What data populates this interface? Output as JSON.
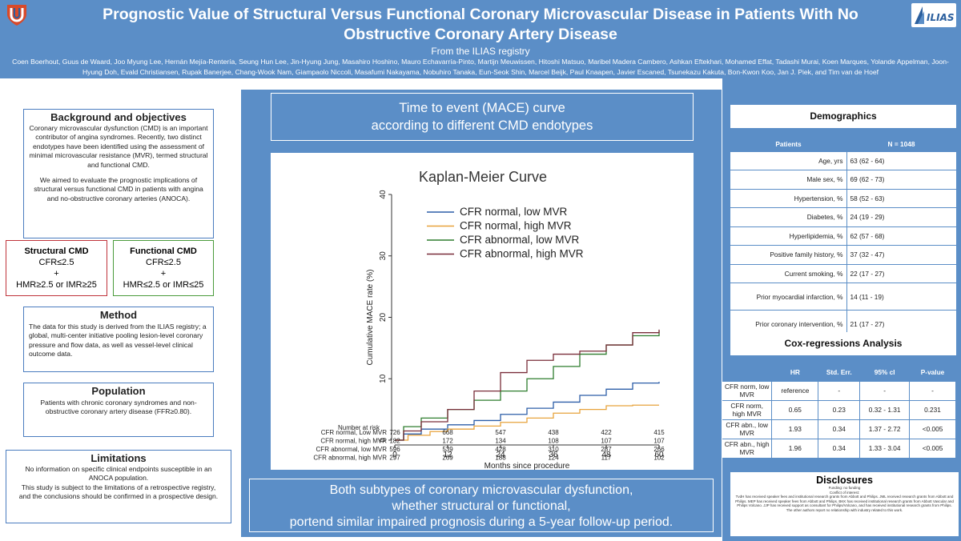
{
  "header": {
    "title": "Prognostic Value of Structural Versus Functional Coronary Microvascular Disease in Patients With No Obstructive Coronary Artery Disease",
    "subtitle": "From the ILIAS registry",
    "authors": "Coen Boerhout, Guus de Waard, Joo Myung Lee, Hernán Mejía-Rentería, Seung Hun Lee, Jin-Hyung Jung, Masahiro Hoshino, Mauro Echavarría-Pinto, Martijn Meuwissen, Hitoshi Matsuo, Maribel Madera Cambero, Ashkan Eftekhari, Mohamed Effat, Tadashi Murai, Koen Marques, Yolande Appelman, Joon-Hyung Doh, Evald Christiansen, Rupak Banerjee, Chang-Wook Nam, Giampaolo Niccoli, Masafumi Nakayama, Nobuhiro Tanaka, Eun-Seok Shin, Marcel Beijk, Paul Knaapen, Javier Escaned, Tsunekazu Kakuta, Bon-Kwon Koo, Jan J. Piek, and Tim van de Hoef",
    "logo_right_text": "ILIAS"
  },
  "left": {
    "background": {
      "title": "Background and objectives",
      "p1": "Coronary microvascular dysfunction (CMD) is an important contributor of angina syndromes. Recently, two distinct endotypes have been identified using the assessment of minimal microvascular resistance (MVR), termed structural and functional CMD.",
      "p2": "We aimed to evaluate the prognostic implications of structural versus functional CMD in patients with angina and no-obstructive coronary arteries (ANOCA)."
    },
    "structural": {
      "title": "Structural CMD",
      "l1": "CFR≤2.5",
      "l2": "+",
      "l3": "HMR≥2.5 or IMR≥25"
    },
    "functional": {
      "title": "Functional CMD",
      "l1": "CFR≤2.5",
      "l2": "+",
      "l3": "HMR≤2.5 or IMR≤25"
    },
    "method": {
      "title": "Method",
      "text": "The data for this study is derived from the ILIAS registry; a global, multi-center initiative pooling lesion-level coronary pressure and flow data, as well as vessel-level clinical outcome data."
    },
    "population": {
      "title": "Population",
      "text": "Patients with chronic coronary syndromes and non-obstructive coronary artery disease (FFR≥0.80)."
    },
    "limitations": {
      "title": "Limitations",
      "p1": "No information on specific clinical endpoints susceptible in an ANOCA population.",
      "p2": "This study is subject to the limitations of a retrospective registry, and the conclusions should be confirmed in a prospective design."
    }
  },
  "center": {
    "title_l1": "Time to event (MACE) curve",
    "title_l2": "according to different CMD endotypes",
    "conclusion_l1": "Both subtypes of coronary microvascular dysfunction,",
    "conclusion_l2": "whether structural or functional,",
    "conclusion_l3": "portend similar impaired prognosis during a 5-year follow-up period."
  },
  "chart_data": {
    "type": "line",
    "title": "Kaplan-Meier Curve",
    "xlabel": "Months since procedure",
    "ylabel": "Cumulative MACE rate (%)",
    "xlim": [
      0,
      60
    ],
    "ylim": [
      0,
      40
    ],
    "xticks": [
      0,
      12,
      24,
      36,
      48,
      60
    ],
    "yticks": [
      0,
      10,
      20,
      30,
      40
    ],
    "legend_position": "top-left",
    "series": [
      {
        "name": "CFR normal, low MVR",
        "color": "#2c5ea8",
        "x": [
          0,
          2,
          6,
          12,
          18,
          24,
          30,
          36,
          42,
          48,
          54,
          60
        ],
        "y": [
          0,
          1.0,
          1.8,
          2.5,
          3.2,
          4.2,
          5.2,
          6.2,
          7.3,
          8.3,
          9.3,
          9.5
        ]
      },
      {
        "name": "CFR normal, high MVR",
        "color": "#e8a33c",
        "x": [
          0,
          3,
          8,
          12,
          18,
          24,
          30,
          36,
          42,
          48,
          54,
          60
        ],
        "y": [
          0,
          0.8,
          1.4,
          1.8,
          2.3,
          2.9,
          3.6,
          4.4,
          5.0,
          5.6,
          5.7,
          5.7
        ]
      },
      {
        "name": "CFR abnormal, low MVR",
        "color": "#2e7d2e",
        "x": [
          0,
          2,
          6,
          12,
          18,
          24,
          30,
          36,
          42,
          48,
          54,
          60
        ],
        "y": [
          0,
          2.2,
          3.6,
          5.0,
          6.5,
          8.0,
          10.0,
          12.0,
          14.0,
          15.5,
          17.0,
          17.8
        ]
      },
      {
        "name": "CFR abnormal, high MVR",
        "color": "#7a2e3a",
        "x": [
          0,
          2,
          6,
          12,
          18,
          24,
          30,
          36,
          42,
          48,
          54,
          60
        ],
        "y": [
          0,
          1.5,
          3.0,
          5.0,
          8.0,
          11.0,
          13.0,
          14.0,
          14.5,
          15.5,
          17.5,
          18.0
        ]
      }
    ],
    "risk_table": {
      "label": "Number at risk",
      "rows": [
        {
          "name": "CFR normal, Low MVR",
          "values": [
            726,
            668,
            547,
            438,
            422,
            415
          ]
        },
        {
          "name": "CFR normal, high MVR",
          "values": [
            182,
            172,
            134,
            108,
            107,
            107
          ]
        },
        {
          "name": "CFR abnormal, low MVR",
          "values": [
            596,
            539,
            428,
            310,
            287,
            266
          ]
        },
        {
          "name": "CFR abnormal, high MVR",
          "values": [
            297,
            269,
            188,
            124,
            117,
            102
          ]
        }
      ]
    }
  },
  "right": {
    "demographics": {
      "title": "Demographics",
      "header": [
        "Patients",
        "N = 1048"
      ],
      "rows": [
        {
          "label": "Age, yrs",
          "value": "63 (62 - 64)"
        },
        {
          "label": "Male sex, %",
          "value": "69 (62 - 73)"
        },
        {
          "label": "Hypertension, %",
          "value": "58 (52 - 63)"
        },
        {
          "label": "Diabetes, %",
          "value": "24 (19 - 29)"
        },
        {
          "label": "Hyperlipidemia, %",
          "value": "62 (57 - 68)"
        },
        {
          "label": "Positive family history, %",
          "value": "37 (32 - 47)"
        },
        {
          "label": "Current smoking, %",
          "value": "22 (17 - 27)"
        },
        {
          "label": "Prior myocardial infarction, %",
          "value": "14 (11 - 19)"
        },
        {
          "label": "Prior coronary intervention, %",
          "value": "21 (17 - 27)"
        }
      ]
    },
    "cox": {
      "title": "Cox-regressions Analysis",
      "header": [
        "",
        "HR",
        "Std. Err.",
        "95% cI",
        "P-value"
      ],
      "rows": [
        [
          "CFR norm, low MVR",
          "reference",
          "-",
          "-",
          "-"
        ],
        [
          "CFR norm, high MVR",
          "0.65",
          "0.23",
          "0.32 - 1.31",
          "0.231"
        ],
        [
          "CFR abn., low MVR",
          "1.93",
          "0.34",
          "1.37 - 2.72",
          "<0.005"
        ],
        [
          "CFR abn., high MVR",
          "1.96",
          "0.34",
          "1.33 - 3.04",
          "<0.005"
        ]
      ]
    },
    "disclosures": {
      "title": "Disclosures",
      "l1": "Funding: no funding",
      "l2": "Conflict of interest:",
      "l3": "TvdH has received speaker fees and institutional research grants from Abbott and Philips. JML received research grants from Abbott and Philips. MEP has received speaker fees from Abbott and Philips. BKK has received institutional research grants from Abbott Vascular and Philips Volcano. JJP has received support as consultant for Philips/Volcano, and has received institutional research grants from Philips. The other authors report no relationship with industry related to this work."
    }
  }
}
